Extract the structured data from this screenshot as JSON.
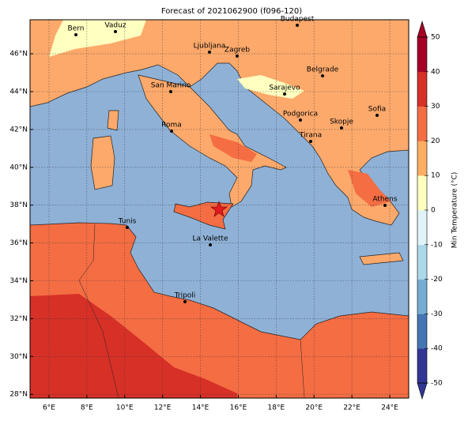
{
  "chart_data": {
    "type": "map",
    "title": "Forecast of 2021062900 (f096-120)",
    "xlim": [
      5,
      25
    ],
    "ylim": [
      27.8,
      47.8
    ],
    "xticks": [
      {
        "value": 6,
        "label": "6°E"
      },
      {
        "value": 8,
        "label": "8°E"
      },
      {
        "value": 10,
        "label": "10°E"
      },
      {
        "value": 12,
        "label": "12°E"
      },
      {
        "value": 14,
        "label": "14°E"
      },
      {
        "value": 16,
        "label": "16°E"
      },
      {
        "value": 18,
        "label": "18°E"
      },
      {
        "value": 20,
        "label": "20°E"
      },
      {
        "value": 22,
        "label": "22°E"
      },
      {
        "value": 24,
        "label": "24°E"
      }
    ],
    "yticks": [
      {
        "value": 28,
        "label": "28°N"
      },
      {
        "value": 30,
        "label": "30°N"
      },
      {
        "value": 32,
        "label": "32°N"
      },
      {
        "value": 34,
        "label": "34°N"
      },
      {
        "value": 36,
        "label": "36°N"
      },
      {
        "value": 38,
        "label": "38°N"
      },
      {
        "value": 40,
        "label": "40°N"
      },
      {
        "value": 42,
        "label": "42°N"
      },
      {
        "value": 44,
        "label": "44°N"
      },
      {
        "value": 46,
        "label": "46°N"
      }
    ],
    "grid": true,
    "cities": [
      "Bern",
      "Vaduz",
      "Budapest",
      "Ljubljana",
      "Zagreb",
      "Belgrade",
      "San Marino",
      "Sarajevo",
      "Sofia",
      "Podgorica",
      "Skopje",
      "Roma",
      "Tirana",
      "Athens",
      "Tunis",
      "La Valette",
      "Tripoli"
    ],
    "colorbar": {
      "label": "Min Temperature (°C)",
      "lim": [
        -50,
        50
      ],
      "ticks": [
        -50,
        -40,
        -30,
        -20,
        -10,
        0,
        10,
        20,
        30,
        40,
        50
      ],
      "colors": [
        "#313695",
        "#4575b4",
        "#74add1",
        "#abd9e9",
        "#e0f3f8",
        "#ffffbf",
        "#fdae61",
        "#f46d43",
        "#d73027",
        "#a50026"
      ]
    }
  }
}
